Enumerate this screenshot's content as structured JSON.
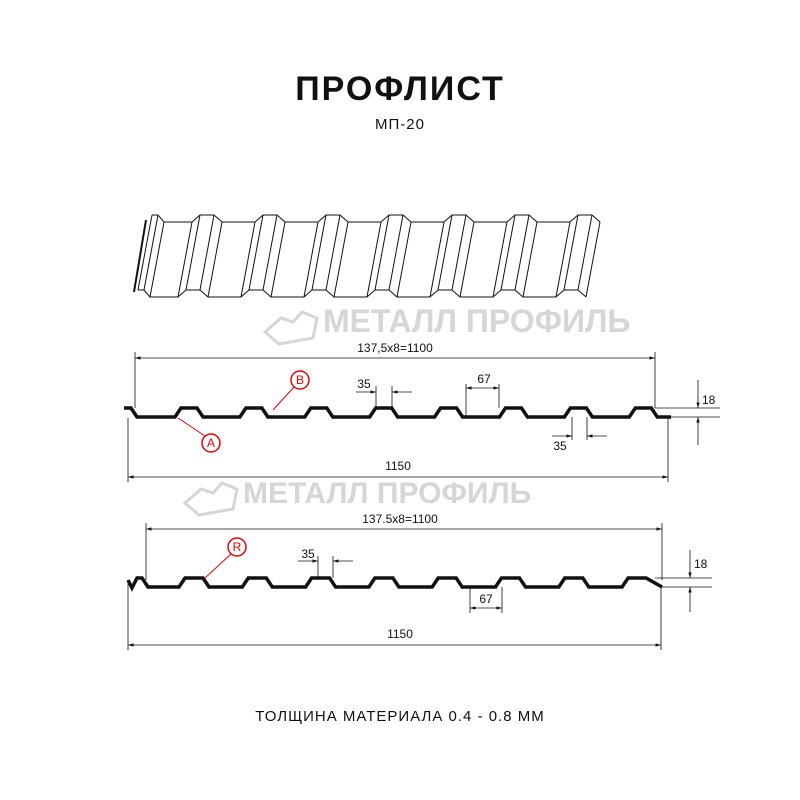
{
  "title": "ПРОФЛИСТ",
  "subtitle": "МП-20",
  "footer": "ТОЛЩИНА МАТЕРИАЛА 0.4 - 0.8 ММ",
  "watermark": "МЕТАЛЛ ПРОФИЛЬ",
  "colors": {
    "line": "#111111",
    "callout": "#e00000",
    "watermark": "#d6d6d6"
  },
  "profile_1": {
    "pitch_dim": "137,5x8=1100",
    "width_dim": "1150",
    "height_dim": "18",
    "top_rib_dim": "35",
    "bottom_rib_dim": "35",
    "rib_width_dim": "67",
    "callouts": [
      "B",
      "A"
    ]
  },
  "profile_2": {
    "pitch_dim": "137.5x8=1100",
    "width_dim": "1150",
    "height_dim": "18",
    "top_rib_dim": "35",
    "rib_width_dim": "67",
    "callouts": [
      "R"
    ]
  }
}
